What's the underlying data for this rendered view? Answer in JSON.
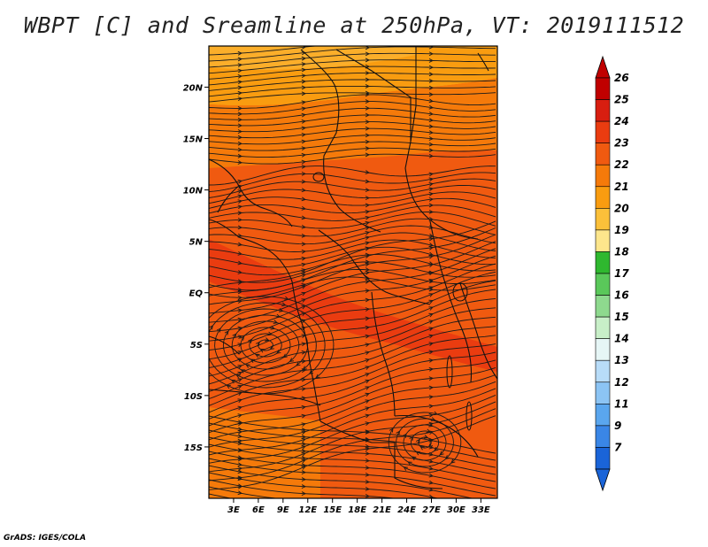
{
  "title": "WBPT [C] and Sreamline at 250hPa, VT: 2019111512",
  "footer": "GrADS: IGES/COLA",
  "map": {
    "lon_range": [
      0,
      35
    ],
    "lat_range": [
      -20,
      24
    ],
    "lon_ticks": [
      {
        "value": 3,
        "label": "3E"
      },
      {
        "value": 6,
        "label": "6E"
      },
      {
        "value": 9,
        "label": "9E"
      },
      {
        "value": 12,
        "label": "12E"
      },
      {
        "value": 15,
        "label": "15E"
      },
      {
        "value": 18,
        "label": "18E"
      },
      {
        "value": 21,
        "label": "21E"
      },
      {
        "value": 24,
        "label": "24E"
      },
      {
        "value": 27,
        "label": "27E"
      },
      {
        "value": 30,
        "label": "30E"
      },
      {
        "value": 33,
        "label": "33E"
      }
    ],
    "lat_ticks": [
      {
        "value": 20,
        "label": "20N"
      },
      {
        "value": 15,
        "label": "15N"
      },
      {
        "value": 10,
        "label": "10N"
      },
      {
        "value": 5,
        "label": "5N"
      },
      {
        "value": 0,
        "label": "EQ"
      },
      {
        "value": -5,
        "label": "5S"
      },
      {
        "value": -10,
        "label": "10S"
      },
      {
        "value": -15,
        "label": "15S"
      }
    ]
  },
  "colorbar": {
    "labels": [
      "26",
      "25",
      "24",
      "23",
      "22",
      "21",
      "20",
      "19",
      "18",
      "17",
      "16",
      "15",
      "14",
      "13",
      "12",
      "11",
      "9",
      "7"
    ],
    "colors": [
      "#c00000",
      "#d81e10",
      "#ea3c10",
      "#f05a10",
      "#f57a0a",
      "#f99c10",
      "#fbc03a",
      "#fde68c",
      "#2fb82f",
      "#5ac85a",
      "#8ed98e",
      "#c8efc8",
      "#e6f6f6",
      "#b8dcf8",
      "#8cc4f4",
      "#5aa6ee",
      "#3a86e6",
      "#1a64d8"
    ]
  }
}
